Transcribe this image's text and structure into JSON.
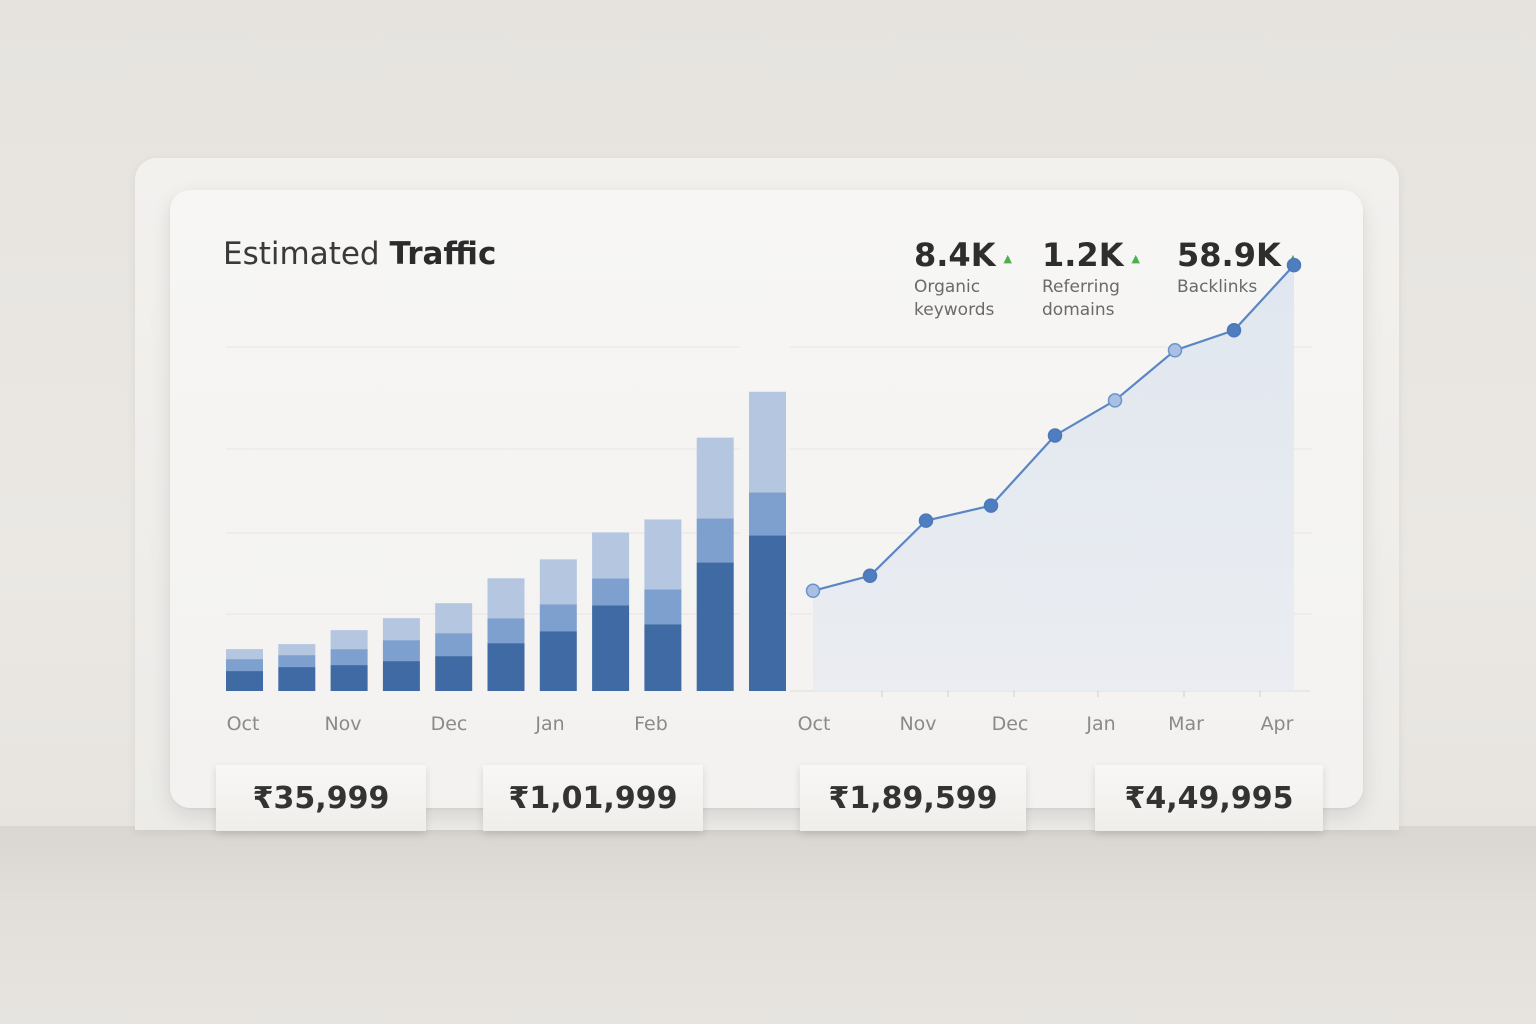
{
  "title": {
    "prefix": "Estimated",
    "bold": "Traffic"
  },
  "stats": [
    {
      "value": "8.4K",
      "label_line1": "Organic",
      "label_line2": "keywords"
    },
    {
      "value": "1.2K",
      "label_line1": "Referring",
      "label_line2": "domains"
    },
    {
      "value": "58.9K",
      "label_line1": "Backlinks",
      "label_line2": ""
    }
  ],
  "arrow_glyph": "▲",
  "colors": {
    "bar_dark": "#3f6aa3",
    "bar_mid": "#7da0cf",
    "bar_light": "#b4c6e0",
    "line": "#5a86c4",
    "up": "#4caf50"
  },
  "prices": [
    "₹35,999",
    "₹1,01,999",
    "₹1,89,599",
    "₹4,49,995"
  ],
  "chart_data": [
    {
      "type": "bar",
      "stacked": true,
      "x_tick_labels": [
        "Oct",
        "Nov",
        "Dec",
        "Jan",
        "Feb"
      ],
      "bars": [
        [
          20,
          12,
          10
        ],
        [
          24,
          12,
          11
        ],
        [
          26,
          16,
          19
        ],
        [
          30,
          21,
          22
        ],
        [
          35,
          23,
          30
        ],
        [
          48,
          25,
          40
        ],
        [
          60,
          27,
          45
        ],
        [
          86,
          27,
          46
        ],
        [
          67,
          35,
          70
        ],
        [
          129,
          44,
          81
        ],
        [
          156,
          43,
          101
        ]
      ],
      "series_colors": [
        "#3f6aa3",
        "#7da0cf",
        "#b4c6e0"
      ],
      "ylim": [
        0,
        390
      ],
      "grid": true
    },
    {
      "type": "area",
      "x_tick_labels": [
        "Oct",
        "Nov",
        "Dec",
        "Jan",
        "Mar",
        "Apr"
      ],
      "values": [
        100,
        115,
        170,
        185,
        255,
        290,
        340,
        360,
        425
      ],
      "ylim": [
        0,
        490
      ],
      "grid": true
    }
  ]
}
